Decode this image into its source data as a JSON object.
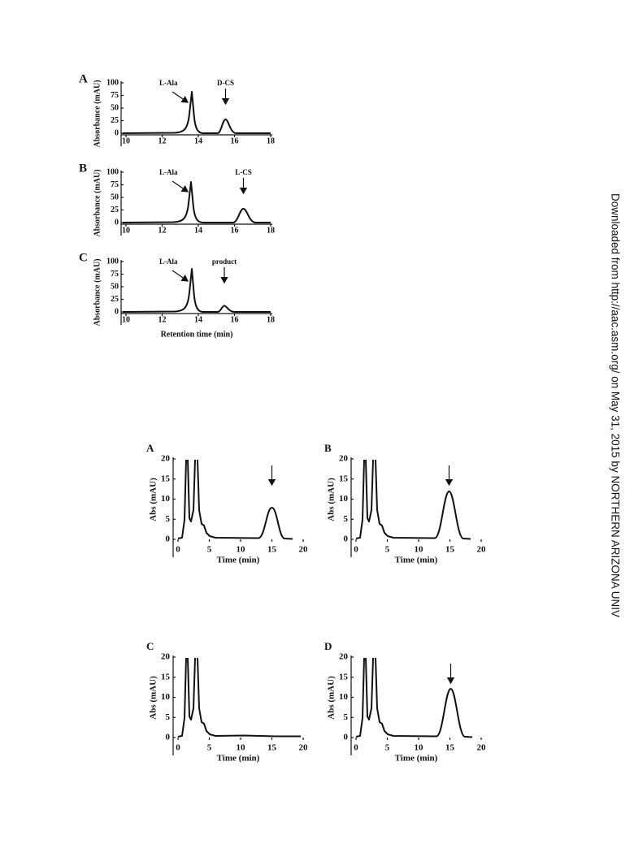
{
  "watermark": "Downloaded from http://aac.asm.org/ on May 31, 2015 by NORTHERN ARIZONA UNIV",
  "figure1": {
    "xlabel": "Retention time (min)",
    "panels": [
      {
        "label": "A",
        "ylabel": "Absorbance (mAU)",
        "xticks": [
          10,
          12,
          14,
          16,
          18
        ],
        "yticks": [
          0,
          25,
          50,
          75,
          100
        ],
        "annotations": [
          "L-Ala",
          "D-CS"
        ]
      },
      {
        "label": "B",
        "ylabel": "Absorbance (mAU)",
        "xticks": [
          10,
          12,
          14,
          16,
          18
        ],
        "yticks": [
          0,
          25,
          50,
          75,
          100
        ],
        "annotations": [
          "L-Ala",
          "L-CS"
        ]
      },
      {
        "label": "C",
        "ylabel": "Absorbance (mAU)",
        "xticks": [
          10,
          12,
          14,
          16,
          18
        ],
        "yticks": [
          0,
          25,
          50,
          75,
          100
        ],
        "annotations": [
          "L-Ala",
          "product"
        ]
      }
    ]
  },
  "figure2": {
    "panels": [
      {
        "label": "A",
        "ylabel": "Abs (mAU)",
        "xlabel": "Time (min)",
        "xticks": [
          0,
          5,
          10,
          15,
          20
        ],
        "yticks": [
          0,
          5,
          10,
          15,
          20
        ]
      },
      {
        "label": "B",
        "ylabel": "Abs (mAU)",
        "xlabel": "Time (min)",
        "xticks": [
          0,
          5,
          10,
          15,
          20
        ],
        "yticks": [
          0,
          5,
          10,
          15,
          20
        ]
      },
      {
        "label": "C",
        "ylabel": "Abs (mAU)",
        "xlabel": "Time (min)",
        "xticks": [
          0,
          5,
          10,
          15,
          20
        ],
        "yticks": [
          0,
          5,
          10,
          15,
          20
        ]
      },
      {
        "label": "D",
        "ylabel": "Abs (mAU)",
        "xlabel": "Time (min)",
        "xticks": [
          0,
          5,
          10,
          15,
          20
        ],
        "yticks": [
          0,
          5,
          10,
          15,
          20
        ]
      }
    ]
  }
}
